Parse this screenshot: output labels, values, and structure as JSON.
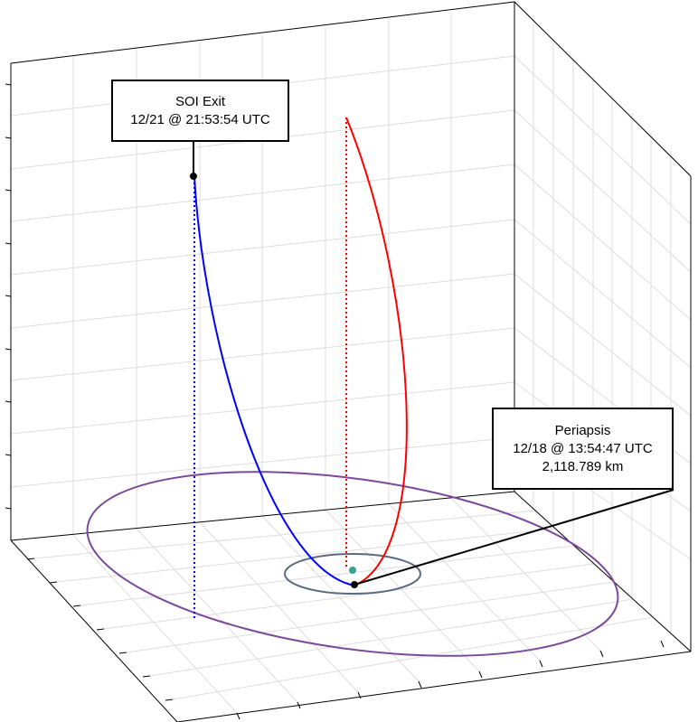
{
  "callouts": {
    "soi_exit": {
      "title": "SOI Exit",
      "time": "12/21 @ 21:53:54 UTC"
    },
    "periapsis": {
      "title": "Periapsis",
      "time": "12/18 @ 13:54:47 UTC",
      "altitude": "2,118.789 km"
    }
  },
  "colors": {
    "departure_trajectory": "#0000ff",
    "arrival_trajectory": "#ff0000",
    "large_orbit": "#7b4a9b",
    "small_orbit": "#5a6a80",
    "central_body": "#3aa090",
    "grid": "#dddddd",
    "axes": "#000000"
  }
}
